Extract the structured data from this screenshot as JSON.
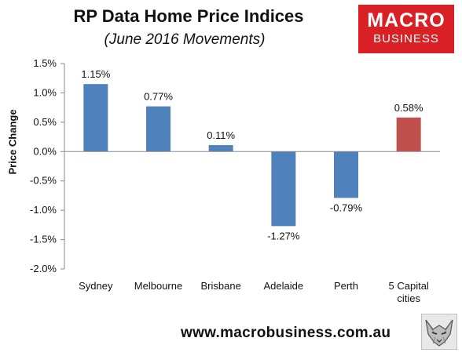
{
  "header": {
    "title": "RP Data Home Price Indices",
    "subtitle": "(June 2016 Movements)"
  },
  "logo": {
    "line1": "MACRO",
    "line2": "BUSINESS",
    "color": "#d92024"
  },
  "footer": {
    "url": "www.macrobusiness.com.au",
    "icon": "wolf-logo-icon"
  },
  "chart_data": {
    "type": "bar",
    "title": "RP Data Home Price Indices",
    "subtitle": "(June 2016 Movements)",
    "ylabel": "Price Change",
    "xlabel": "",
    "categories": [
      "Sydney",
      "Melbourne",
      "Brisbane",
      "Adelaide",
      "Perth",
      "5 Capital cities"
    ],
    "values": [
      1.15,
      0.77,
      0.11,
      -1.27,
      -0.79,
      0.58
    ],
    "data_labels": [
      "1.15%",
      "0.77%",
      "0.11%",
      "-1.27%",
      "-0.79%",
      "0.58%"
    ],
    "bar_colors": [
      "#4f81bd",
      "#4f81bd",
      "#4f81bd",
      "#4f81bd",
      "#4f81bd",
      "#c0504d"
    ],
    "ylim": [
      -2.0,
      1.5
    ],
    "yticks": [
      1.5,
      1.0,
      0.5,
      0.0,
      -0.5,
      -1.0,
      -1.5,
      -2.0
    ],
    "ytick_labels": [
      "1.5%",
      "1.0%",
      "0.5%",
      "0.0%",
      "-0.5%",
      "-1.0%",
      "-1.5%",
      "-2.0%"
    ],
    "grid": false,
    "legend": "none"
  }
}
